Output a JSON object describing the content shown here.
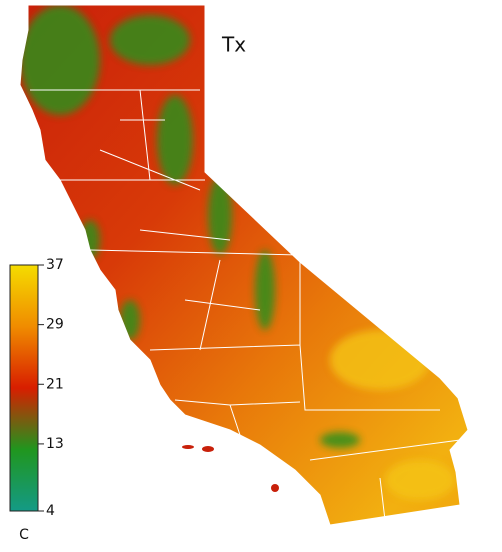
{
  "map": {
    "title": "Tx",
    "colorbar": {
      "lim": [
        4,
        37
      ],
      "ticks": [
        37,
        29,
        21,
        13,
        4
      ],
      "unit": "C"
    }
  }
}
